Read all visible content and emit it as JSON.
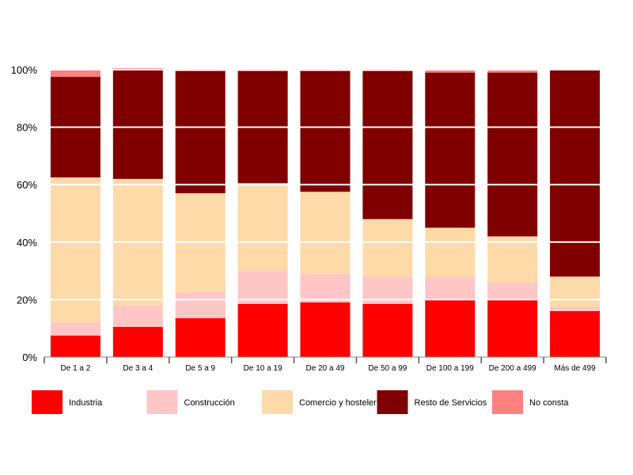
{
  "chart_data": {
    "type": "bar",
    "stacked": true,
    "normalized": true,
    "title": "",
    "xlabel": "",
    "ylabel": "",
    "ylim": [
      0,
      100
    ],
    "yticks": [
      "0%",
      "20%",
      "40%",
      "60%",
      "80%",
      "100%"
    ],
    "grid": true,
    "legend_position": "bottom",
    "categories": [
      "De 1 a 2",
      "De 3 a 4",
      "De 5 a 9",
      "De 10 a 19",
      "De 20 a 49",
      "De 50 a 99",
      "De 100 a 199",
      "De 200 a 499",
      "Más de 499"
    ],
    "series": [
      {
        "name": "Industria",
        "color": "#FF0000",
        "values": [
          7.5,
          10.5,
          13.5,
          18.5,
          19,
          18.5,
          20,
          20,
          16
        ]
      },
      {
        "name": "Construcción",
        "color": "#FFC6C6",
        "values": [
          4.5,
          7.5,
          9,
          11.5,
          10,
          9.5,
          8,
          6,
          1.5
        ]
      },
      {
        "name": "Comercio y hostelería",
        "color": "#FDDAA8",
        "values": [
          50.5,
          44,
          34.5,
          30.5,
          28.5,
          20,
          17,
          16,
          10.5
        ]
      },
      {
        "name": "Resto de Servicios",
        "color": "#800000",
        "values": [
          35,
          38,
          42.5,
          39,
          42,
          51.5,
          54,
          57,
          72
        ]
      },
      {
        "name": "No consta",
        "color": "#FF8080",
        "values": [
          2.5,
          0.5,
          0.5,
          0.5,
          0.5,
          0.5,
          1,
          1,
          0
        ]
      }
    ],
    "legend_labels": [
      "Industria",
      "Construcción",
      "Comercio y hostelería",
      "Resto de Servicios",
      "No consta"
    ]
  }
}
